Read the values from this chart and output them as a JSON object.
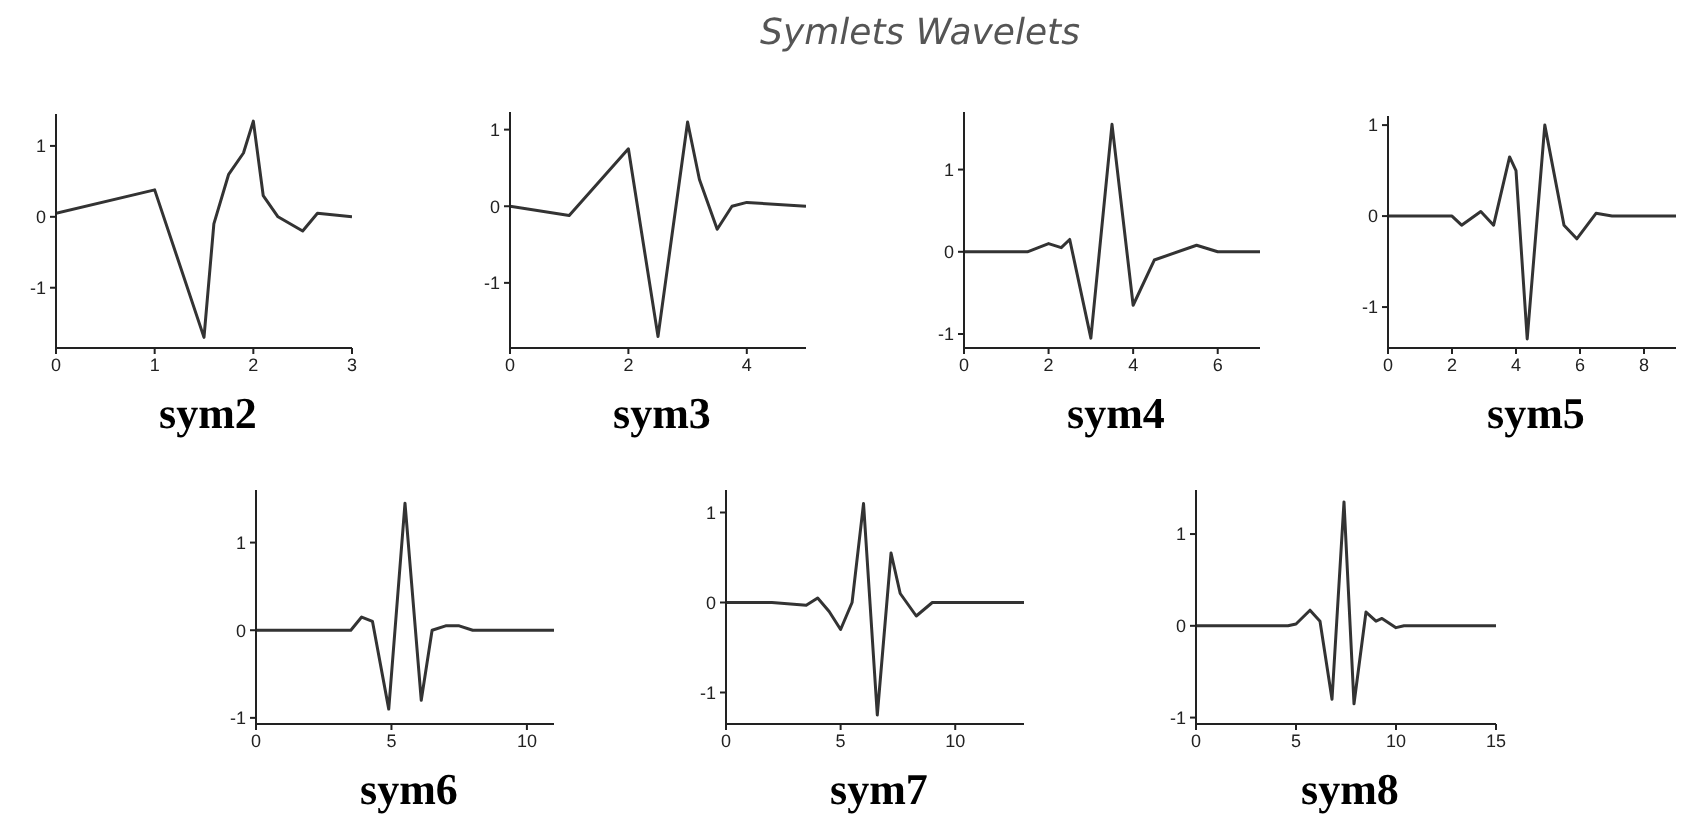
{
  "chart_data": [
    {
      "type": "line",
      "xlabel": "sym2",
      "color": "#333333",
      "x": [
        0,
        1,
        1.5,
        1.6,
        1.75,
        1.9,
        2,
        2.1,
        2.25,
        2.5,
        2.65,
        3
      ],
      "values": [
        0.05,
        0.38,
        -1.7,
        -0.1,
        0.6,
        0.9,
        1.35,
        0.3,
        0,
        -0.2,
        0.05,
        0
      ],
      "xlim": [
        0,
        3
      ],
      "ylim": [
        -1.85,
        1.45
      ],
      "xticks": [
        0,
        1,
        2,
        3
      ],
      "yticks": [
        -1,
        0,
        1
      ]
    },
    {
      "type": "line",
      "xlabel": "sym3",
      "color": "#333333",
      "x": [
        0,
        1,
        2,
        2.5,
        3,
        3.2,
        3.5,
        3.75,
        4,
        5
      ],
      "values": [
        0,
        -0.12,
        0.75,
        -1.7,
        1.1,
        0.35,
        -0.3,
        0,
        0.05,
        0
      ],
      "xlim": [
        0,
        5
      ],
      "ylim": [
        -1.85,
        1.23
      ],
      "xticks": [
        0,
        2,
        4
      ],
      "yticks": [
        -1,
        0,
        1
      ]
    },
    {
      "type": "line",
      "title": "Symlets Wavelets",
      "xlabel": "sym4",
      "color": "#333333",
      "x": [
        0,
        1.5,
        2,
        2.3,
        2.5,
        3,
        3.5,
        4,
        4.5,
        5.5,
        6,
        7
      ],
      "values": [
        0,
        0,
        0.1,
        0.05,
        0.15,
        -1.05,
        1.55,
        -0.65,
        -0.1,
        0.08,
        0,
        0
      ],
      "xlim": [
        0,
        7
      ],
      "ylim": [
        -1.17,
        1.7
      ],
      "xticks": [
        0,
        2,
        4,
        6
      ],
      "yticks": [
        -1,
        0,
        1
      ]
    },
    {
      "type": "line",
      "xlabel": "sym5",
      "color": "#333333",
      "x": [
        0,
        2,
        2.3,
        2.9,
        3.3,
        3.8,
        4,
        4.35,
        4.9,
        5.5,
        5.9,
        6.5,
        7,
        9
      ],
      "values": [
        0,
        0,
        -0.1,
        0.05,
        -0.1,
        0.65,
        0.5,
        -1.35,
        1,
        -0.1,
        -0.25,
        0.03,
        0,
        0
      ],
      "xlim": [
        0,
        9
      ],
      "ylim": [
        -1.45,
        1.1
      ],
      "xticks": [
        0,
        2,
        4,
        6,
        8
      ],
      "yticks": [
        -1,
        0,
        1
      ]
    },
    {
      "type": "line",
      "xlabel": "sym6",
      "color": "#333333",
      "x": [
        0,
        3.5,
        3.9,
        4.3,
        4.9,
        5.5,
        6.1,
        6.5,
        7,
        7.5,
        8,
        11
      ],
      "values": [
        0,
        0,
        0.15,
        0.1,
        -0.9,
        1.45,
        -0.8,
        0,
        0.05,
        0.05,
        0,
        0
      ],
      "xlim": [
        0,
        11
      ],
      "ylim": [
        -1.07,
        1.6
      ],
      "xticks": [
        0,
        5,
        10
      ],
      "yticks": [
        -1,
        0,
        1
      ]
    },
    {
      "type": "line",
      "xlabel": "sym7",
      "color": "#333333",
      "x": [
        0,
        2,
        3.5,
        4,
        4.5,
        5,
        5.5,
        6,
        6.6,
        7.2,
        7.6,
        8.3,
        9,
        13
      ],
      "values": [
        0,
        0,
        -0.03,
        0.05,
        -0.1,
        -0.3,
        0,
        1.1,
        -1.25,
        0.55,
        0.1,
        -0.15,
        0,
        0
      ],
      "xlim": [
        0,
        13
      ],
      "ylim": [
        -1.35,
        1.25
      ],
      "xticks": [
        0,
        5,
        10
      ],
      "yticks": [
        -1,
        0,
        1
      ]
    },
    {
      "type": "line",
      "xlabel": "sym8",
      "color": "#333333",
      "x": [
        0,
        4.6,
        5,
        5.7,
        6.2,
        6.8,
        7.4,
        7.9,
        8.5,
        9,
        9.3,
        10,
        10.4,
        15
      ],
      "values": [
        0,
        0,
        0.02,
        0.17,
        0.05,
        -0.8,
        1.35,
        -0.85,
        0.15,
        0.05,
        0.08,
        -0.02,
        0,
        0
      ],
      "xlim": [
        0,
        15
      ],
      "ylim": [
        -1.07,
        1.48
      ],
      "xticks": [
        0,
        5,
        10,
        15
      ],
      "yticks": [
        -1,
        0,
        1
      ]
    }
  ]
}
